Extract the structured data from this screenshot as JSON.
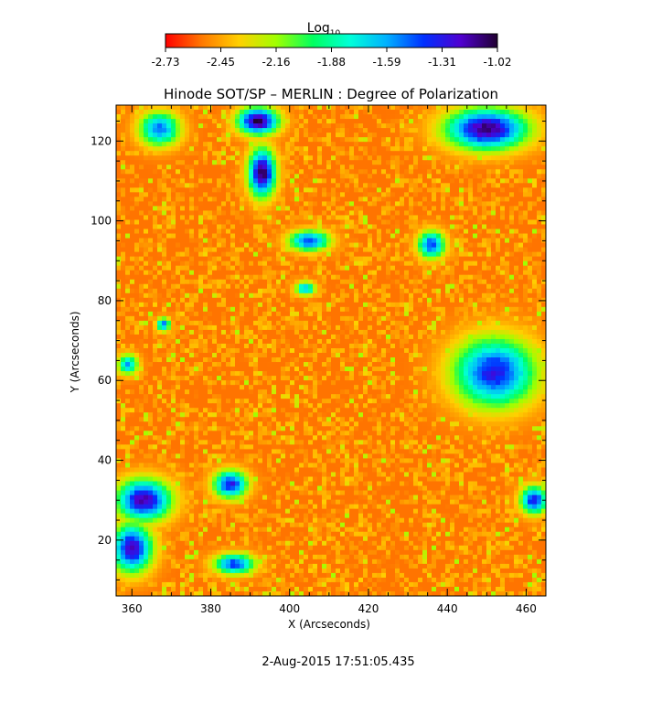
{
  "chart_data": {
    "type": "heatmap",
    "title": "Hinode SOT/SP – MERLIN : Degree of Polarization",
    "xlabel": "X (Arcseconds)",
    "ylabel": "Y (Arcseconds)",
    "xlim": [
      356,
      465
    ],
    "ylim": [
      6,
      129
    ],
    "x_ticks": [
      360,
      380,
      400,
      420,
      440,
      460
    ],
    "y_ticks": [
      20,
      40,
      60,
      80,
      100,
      120
    ],
    "colorbar": {
      "label": "Log",
      "label_subscript": "10",
      "ticks": [
        "-2.73",
        "-2.45",
        "-2.16",
        "-1.88",
        "-1.59",
        "-1.31",
        "-1.02"
      ],
      "range": [
        -2.73,
        -1.02
      ],
      "colors": [
        "#ff0000",
        "#ff7a00",
        "#ffd000",
        "#a0ff00",
        "#00ff60",
        "#00ffd8",
        "#00b0ff",
        "#0030ff",
        "#5000d0",
        "#200030"
      ]
    },
    "background_level": -2.55,
    "enhanced_regions": [
      {
        "x": 392,
        "y": 125,
        "rx": 6,
        "ry": 4,
        "level": -1.05
      },
      {
        "x": 393,
        "y": 112,
        "rx": 4,
        "ry": 7,
        "level": -1.05
      },
      {
        "x": 367,
        "y": 123,
        "rx": 6,
        "ry": 5,
        "level": -1.5
      },
      {
        "x": 405,
        "y": 95,
        "rx": 6,
        "ry": 3,
        "level": -1.4
      },
      {
        "x": 404,
        "y": 83,
        "rx": 3,
        "ry": 2,
        "level": -1.6
      },
      {
        "x": 436,
        "y": 94,
        "rx": 4,
        "ry": 4,
        "level": -1.4
      },
      {
        "x": 450,
        "y": 123,
        "rx": 12,
        "ry": 6,
        "level": -1.1
      },
      {
        "x": 452,
        "y": 62,
        "rx": 12,
        "ry": 10,
        "level": -1.3
      },
      {
        "x": 363,
        "y": 30,
        "rx": 8,
        "ry": 6,
        "level": -1.15
      },
      {
        "x": 360,
        "y": 18,
        "rx": 6,
        "ry": 7,
        "level": -1.2
      },
      {
        "x": 385,
        "y": 34,
        "rx": 5,
        "ry": 4,
        "level": -1.3
      },
      {
        "x": 386,
        "y": 14,
        "rx": 6,
        "ry": 3,
        "level": -1.4
      },
      {
        "x": 462,
        "y": 30,
        "rx": 4,
        "ry": 4,
        "level": -1.3
      },
      {
        "x": 368,
        "y": 74,
        "rx": 2,
        "ry": 2,
        "level": -1.5
      },
      {
        "x": 359,
        "y": 64,
        "rx": 3,
        "ry": 3,
        "level": -1.6
      }
    ]
  },
  "timestamp": "2-Aug-2015 17:51:05.435"
}
